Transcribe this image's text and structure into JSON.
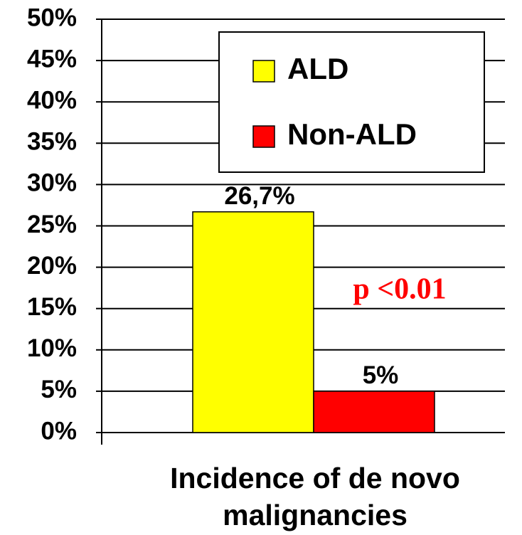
{
  "chart_data": {
    "type": "bar",
    "categories": [
      "Incidence of de novo malignancies"
    ],
    "series": [
      {
        "name": "ALD",
        "color": "#ffff00",
        "values": [
          26.7
        ],
        "value_labels": [
          "26,7%"
        ]
      },
      {
        "name": "Non-ALD",
        "color": "#ff0000",
        "values": [
          5
        ],
        "value_labels": [
          "5%"
        ]
      }
    ],
    "annotations": [
      "p <0.01"
    ],
    "ylim": [
      0,
      50
    ],
    "yticks": [
      {
        "value": 0,
        "label": "0%"
      },
      {
        "value": 5,
        "label": "5%"
      },
      {
        "value": 10,
        "label": "10%"
      },
      {
        "value": 15,
        "label": "15%"
      },
      {
        "value": 20,
        "label": "20%"
      },
      {
        "value": 25,
        "label": "25%"
      },
      {
        "value": 30,
        "label": "30%"
      },
      {
        "value": 35,
        "label": "35%"
      },
      {
        "value": 40,
        "label": "40%"
      },
      {
        "value": 45,
        "label": "45%"
      },
      {
        "value": 50,
        "label": "50%"
      }
    ],
    "grid": true
  }
}
